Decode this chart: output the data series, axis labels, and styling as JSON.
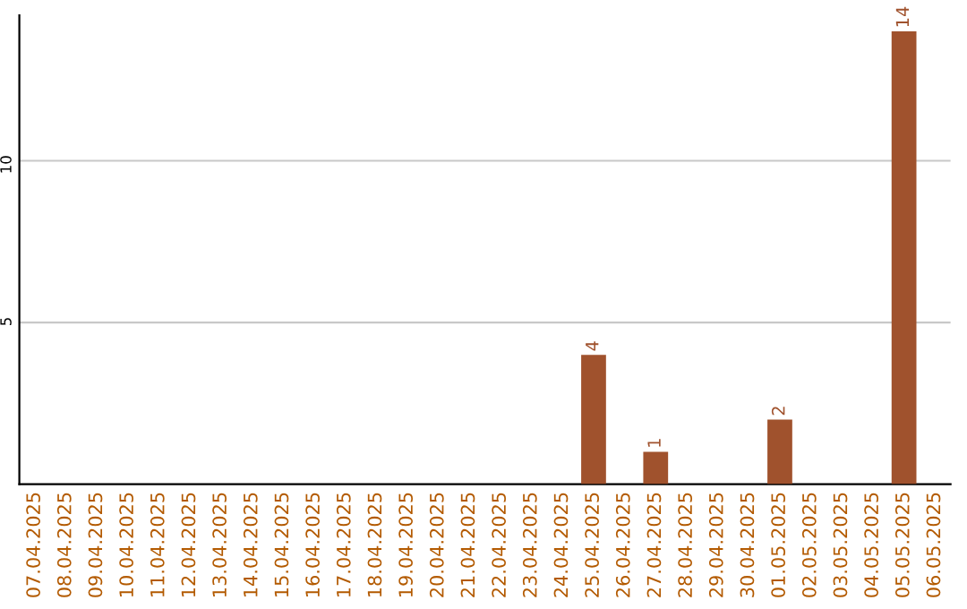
{
  "chart_data": {
    "type": "bar",
    "categories": [
      "07.04.2025",
      "08.04.2025",
      "09.04.2025",
      "10.04.2025",
      "11.04.2025",
      "12.04.2025",
      "13.04.2025",
      "14.04.2025",
      "15.04.2025",
      "16.04.2025",
      "17.04.2025",
      "18.04.2025",
      "19.04.2025",
      "20.04.2025",
      "21.04.2025",
      "22.04.2025",
      "23.04.2025",
      "24.04.2025",
      "25.04.2025",
      "26.04.2025",
      "27.04.2025",
      "28.04.2025",
      "29.04.2025",
      "30.04.2025",
      "01.05.2025",
      "02.05.2025",
      "03.05.2025",
      "04.05.2025",
      "05.05.2025",
      "06.05.2025"
    ],
    "values": [
      0,
      0,
      0,
      0,
      0,
      0,
      0,
      0,
      0,
      0,
      0,
      0,
      0,
      0,
      0,
      0,
      0,
      0,
      4,
      0,
      1,
      0,
      0,
      0,
      2,
      0,
      0,
      0,
      14,
      0
    ],
    "value_labels": [
      null,
      null,
      null,
      null,
      null,
      null,
      null,
      null,
      null,
      null,
      null,
      null,
      null,
      null,
      null,
      null,
      null,
      null,
      "4",
      null,
      "1",
      null,
      null,
      null,
      "2",
      null,
      null,
      null,
      "14",
      null
    ],
    "color": "#a0522d",
    "ylim": [
      0,
      14.5
    ],
    "yticks": [
      5,
      10
    ],
    "grid": "y",
    "legend": false
  }
}
